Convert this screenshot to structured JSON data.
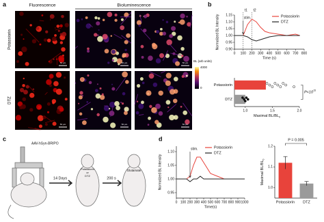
{
  "figure": {
    "panel_labels": [
      "a",
      "b",
      "c",
      "d"
    ],
    "a": {
      "headers": [
        "Fluorescence",
        "Bioluminescence"
      ],
      "rows": [
        "Potassiorin",
        "DTZ"
      ],
      "scale_bar": "50 µm",
      "colorbar": {
        "label": "BL (arb units)",
        "max": "4000",
        "min": "0"
      }
    },
    "c": {
      "virus": "AAV-hSyn-BRIPO",
      "step1": "14 Days",
      "step2": "200 s",
      "treatment": [
        "Potassiorin",
        "or",
        "DTZ"
      ],
      "stimulus": "Glutamate"
    }
  },
  "chart_data": [
    {
      "type": "line",
      "ylabel": "Normalized BL Intensity",
      "xlabel": "Time (s)",
      "x": [
        0,
        50,
        100,
        150,
        200,
        250,
        300,
        350,
        400,
        500,
        600,
        700,
        750
      ],
      "series": [
        {
          "name": "Potassiorin",
          "color": "#e8433b",
          "values": [
            1.0,
            1.0,
            1.0,
            1.08,
            1.12,
            1.1,
            1.06,
            1.03,
            1.02,
            1.01,
            1.0,
            1.01,
            1.0
          ]
        },
        {
          "name": "DTZ",
          "color": "#222222",
          "values": [
            1.0,
            1.0,
            1.0,
            0.99,
            0.97,
            0.96,
            0.97,
            0.98,
            0.99,
            1.0,
            1.0,
            1.0,
            1.0
          ]
        }
      ],
      "xlim": [
        0,
        800
      ],
      "xticks": [
        0,
        100,
        200,
        300,
        400,
        500,
        600,
        700,
        800
      ],
      "ylim": [
        0.9,
        1.15
      ],
      "yticks": [
        {
          "value": 0.9,
          "label": "0.90"
        },
        0.95,
        {
          "value": 1,
          "label": "1.00"
        },
        1.05,
        {
          "value": 1.1,
          "label": "1.10"
        },
        1.15
      ],
      "markers": [
        {
          "text": "t1",
          "x": 100
        },
        {
          "text": "t2",
          "x": 200
        }
      ],
      "annotations": [
        {
          "text": "stim.",
          "x": 100
        }
      ]
    },
    {
      "type": "hbar",
      "xlabel": "Maximal BL/BL",
      "xlabel_sub": "0",
      "categories": [
        "Potassiorin",
        "DTZ"
      ],
      "values": [
        1.38,
        1.0
      ],
      "colors": [
        "#e8433b",
        "#9a9a9a"
      ],
      "points": [
        [
          1.4,
          1.45,
          1.5,
          1.55,
          1.6,
          1.65,
          1.7,
          1.75,
          1.9
        ],
        [
          0.95,
          0.98,
          1.0,
          1.02,
          1.05
        ]
      ],
      "xlim": [
        0.8,
        2.0
      ],
      "xticks": [
        {
          "value": 1,
          "label": "1.0"
        },
        1.5,
        {
          "value": 2,
          "label": "2.0"
        }
      ],
      "p_value": "P<10",
      "p_value_exp": "-15"
    },
    {
      "type": "line",
      "ylabel": "Normalized BL Intensity",
      "xlabel": "Time(s)",
      "x": [
        0,
        100,
        150,
        200,
        250,
        300,
        350,
        400,
        450,
        500,
        600,
        700,
        800,
        900,
        1000
      ],
      "series": [
        {
          "name": "Potassiorin",
          "color": "#e8433b",
          "values": [
            1.0,
            1.0,
            1.0,
            1.01,
            1.05,
            1.08,
            1.08,
            1.06,
            1.04,
            1.02,
            1.01,
            1.0,
            1.0,
            1.0,
            1.0
          ]
        },
        {
          "name": "DTZ",
          "color": "#222222",
          "values": [
            1.0,
            1.0,
            1.0,
            0.99,
            1.0,
            1.0,
            1.01,
            1.0,
            1.0,
            1.0,
            1.0,
            1.0,
            1.0,
            1.0,
            1.0
          ]
        }
      ],
      "xlim": [
        0,
        1000
      ],
      "xticks": [
        0,
        100,
        200,
        300,
        400,
        500,
        600,
        700,
        800,
        900,
        1000
      ],
      "ylim": [
        0.93,
        1.12
      ],
      "yticks": [
        0.95,
        {
          "value": 1,
          "label": "1.00"
        },
        1.05,
        {
          "value": 1.1,
          "label": "1.10"
        }
      ],
      "annotations": [
        {
          "text": "stim.",
          "x": 200
        }
      ]
    },
    {
      "type": "vbar",
      "ylabel": "Maximal BL/BL",
      "ylabel_sub": "0",
      "categories": [
        "Potassiorin",
        "DTZ"
      ],
      "values": [
        1.12,
        1.02
      ],
      "errors": [
        0.03,
        0.01
      ],
      "colors": [
        "#e8433b",
        "#9a9a9a"
      ],
      "ylim": [
        0.95,
        1.2
      ],
      "yticks": [
        {
          "value": 1,
          "label": "1.0"
        },
        1.1,
        1.2
      ],
      "p_value": "P = 0.005"
    }
  ]
}
